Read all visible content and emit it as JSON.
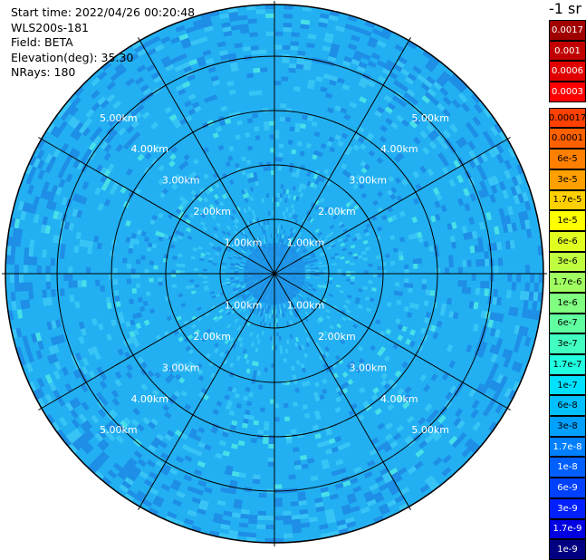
{
  "header": {
    "start_time": "Start time: 2022/04/26 00:20:48",
    "instrument": "WLS200s-181",
    "field": "Field: BETA",
    "elevation": "Elevation(deg): 35.30",
    "nrays": "NRays: 180"
  },
  "colorbar": {
    "unit": "-1 sr",
    "top_labels": [
      "0.0017",
      "0.001",
      "0.0006",
      "0.0003"
    ],
    "labels": [
      "0.00017",
      "0.0001",
      "6e-5",
      "3e-5",
      "1.7e-5",
      "1e-5",
      "6e-6",
      "3e-6",
      "1.7e-6",
      "1e-6",
      "6e-7",
      "3e-7",
      "1.7e-7",
      "1e-7",
      "6e-8",
      "3e-8",
      "1.7e-8",
      "1e-8",
      "6e-9",
      "3e-9",
      "1.7e-9",
      "1e-9"
    ],
    "top_colors": [
      "#a00000",
      "#c00000",
      "#e00000",
      "#ff0000"
    ],
    "colors": [
      "#ff4000",
      "#ff6000",
      "#ff8000",
      "#ffa000",
      "#ffd000",
      "#ffff00",
      "#e0ff20",
      "#c0ff40",
      "#a0ff60",
      "#80ff80",
      "#60ffa0",
      "#40ffc0",
      "#20ffe0",
      "#00e0ff",
      "#00c0ff",
      "#00a0ff",
      "#0080ff",
      "#0060ff",
      "#0040ff",
      "#0020ff",
      "#0000e0",
      "#000080"
    ]
  },
  "ppi": {
    "ring_labels": [
      "1.00km",
      "2.00km",
      "3.00km",
      "4.00km",
      "5.00km"
    ],
    "colors": {
      "base": "#22b0f2",
      "dark": "#1e8ee6",
      "light": "#38c4f5",
      "cyan": "#48e0e8"
    }
  }
}
